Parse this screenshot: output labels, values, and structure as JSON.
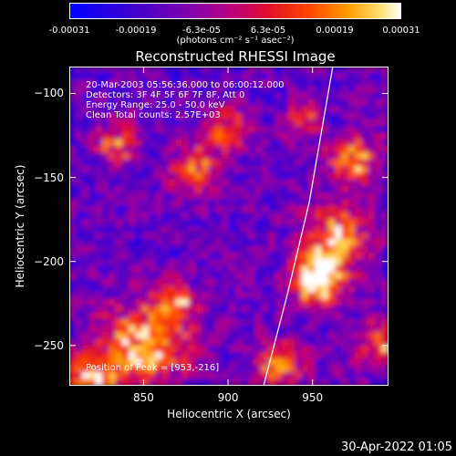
{
  "colorbar": {
    "ticks": [
      "-0.00031",
      "-0.00019",
      "-6.3e-05",
      "6.3e-05",
      "0.00019",
      "0.00031"
    ],
    "unit": "(photons cm⁻² s⁻¹ asec⁻²)"
  },
  "chart_data": {
    "type": "heatmap",
    "title": "Reconstructed RHESSI Image",
    "xlabel": "Heliocentric X (arcsec)",
    "ylabel": "Heliocentric Y (arcsec)",
    "xlim": [
      806,
      995
    ],
    "ylim": [
      -274,
      -84
    ],
    "x_ticks": [
      850,
      900,
      950
    ],
    "y_ticks": [
      -100,
      -150,
      -200,
      -250
    ],
    "color_range": [
      -0.00031,
      0.00031
    ],
    "colormap": "blue-purple-red-yellow-white",
    "limb_curve": [
      [
        921,
        -274
      ],
      [
        935,
        -220
      ],
      [
        948,
        -165
      ],
      [
        962,
        -84
      ]
    ],
    "peak": [
      953,
      -216
    ],
    "annotations": [
      "20-Mar-2003 05:56:36.000 to 06:00:12.000",
      "Detectors: 3F 4F 5F 6F 7F 8F, Att 0",
      "Energy Range: 25.0 - 50.0 keV",
      "Clean    Total counts: 2.57E+03",
      "Position of Peak = [953,-216]"
    ],
    "grid": false
  },
  "timestamp": "30-Apr-2022 01:05"
}
